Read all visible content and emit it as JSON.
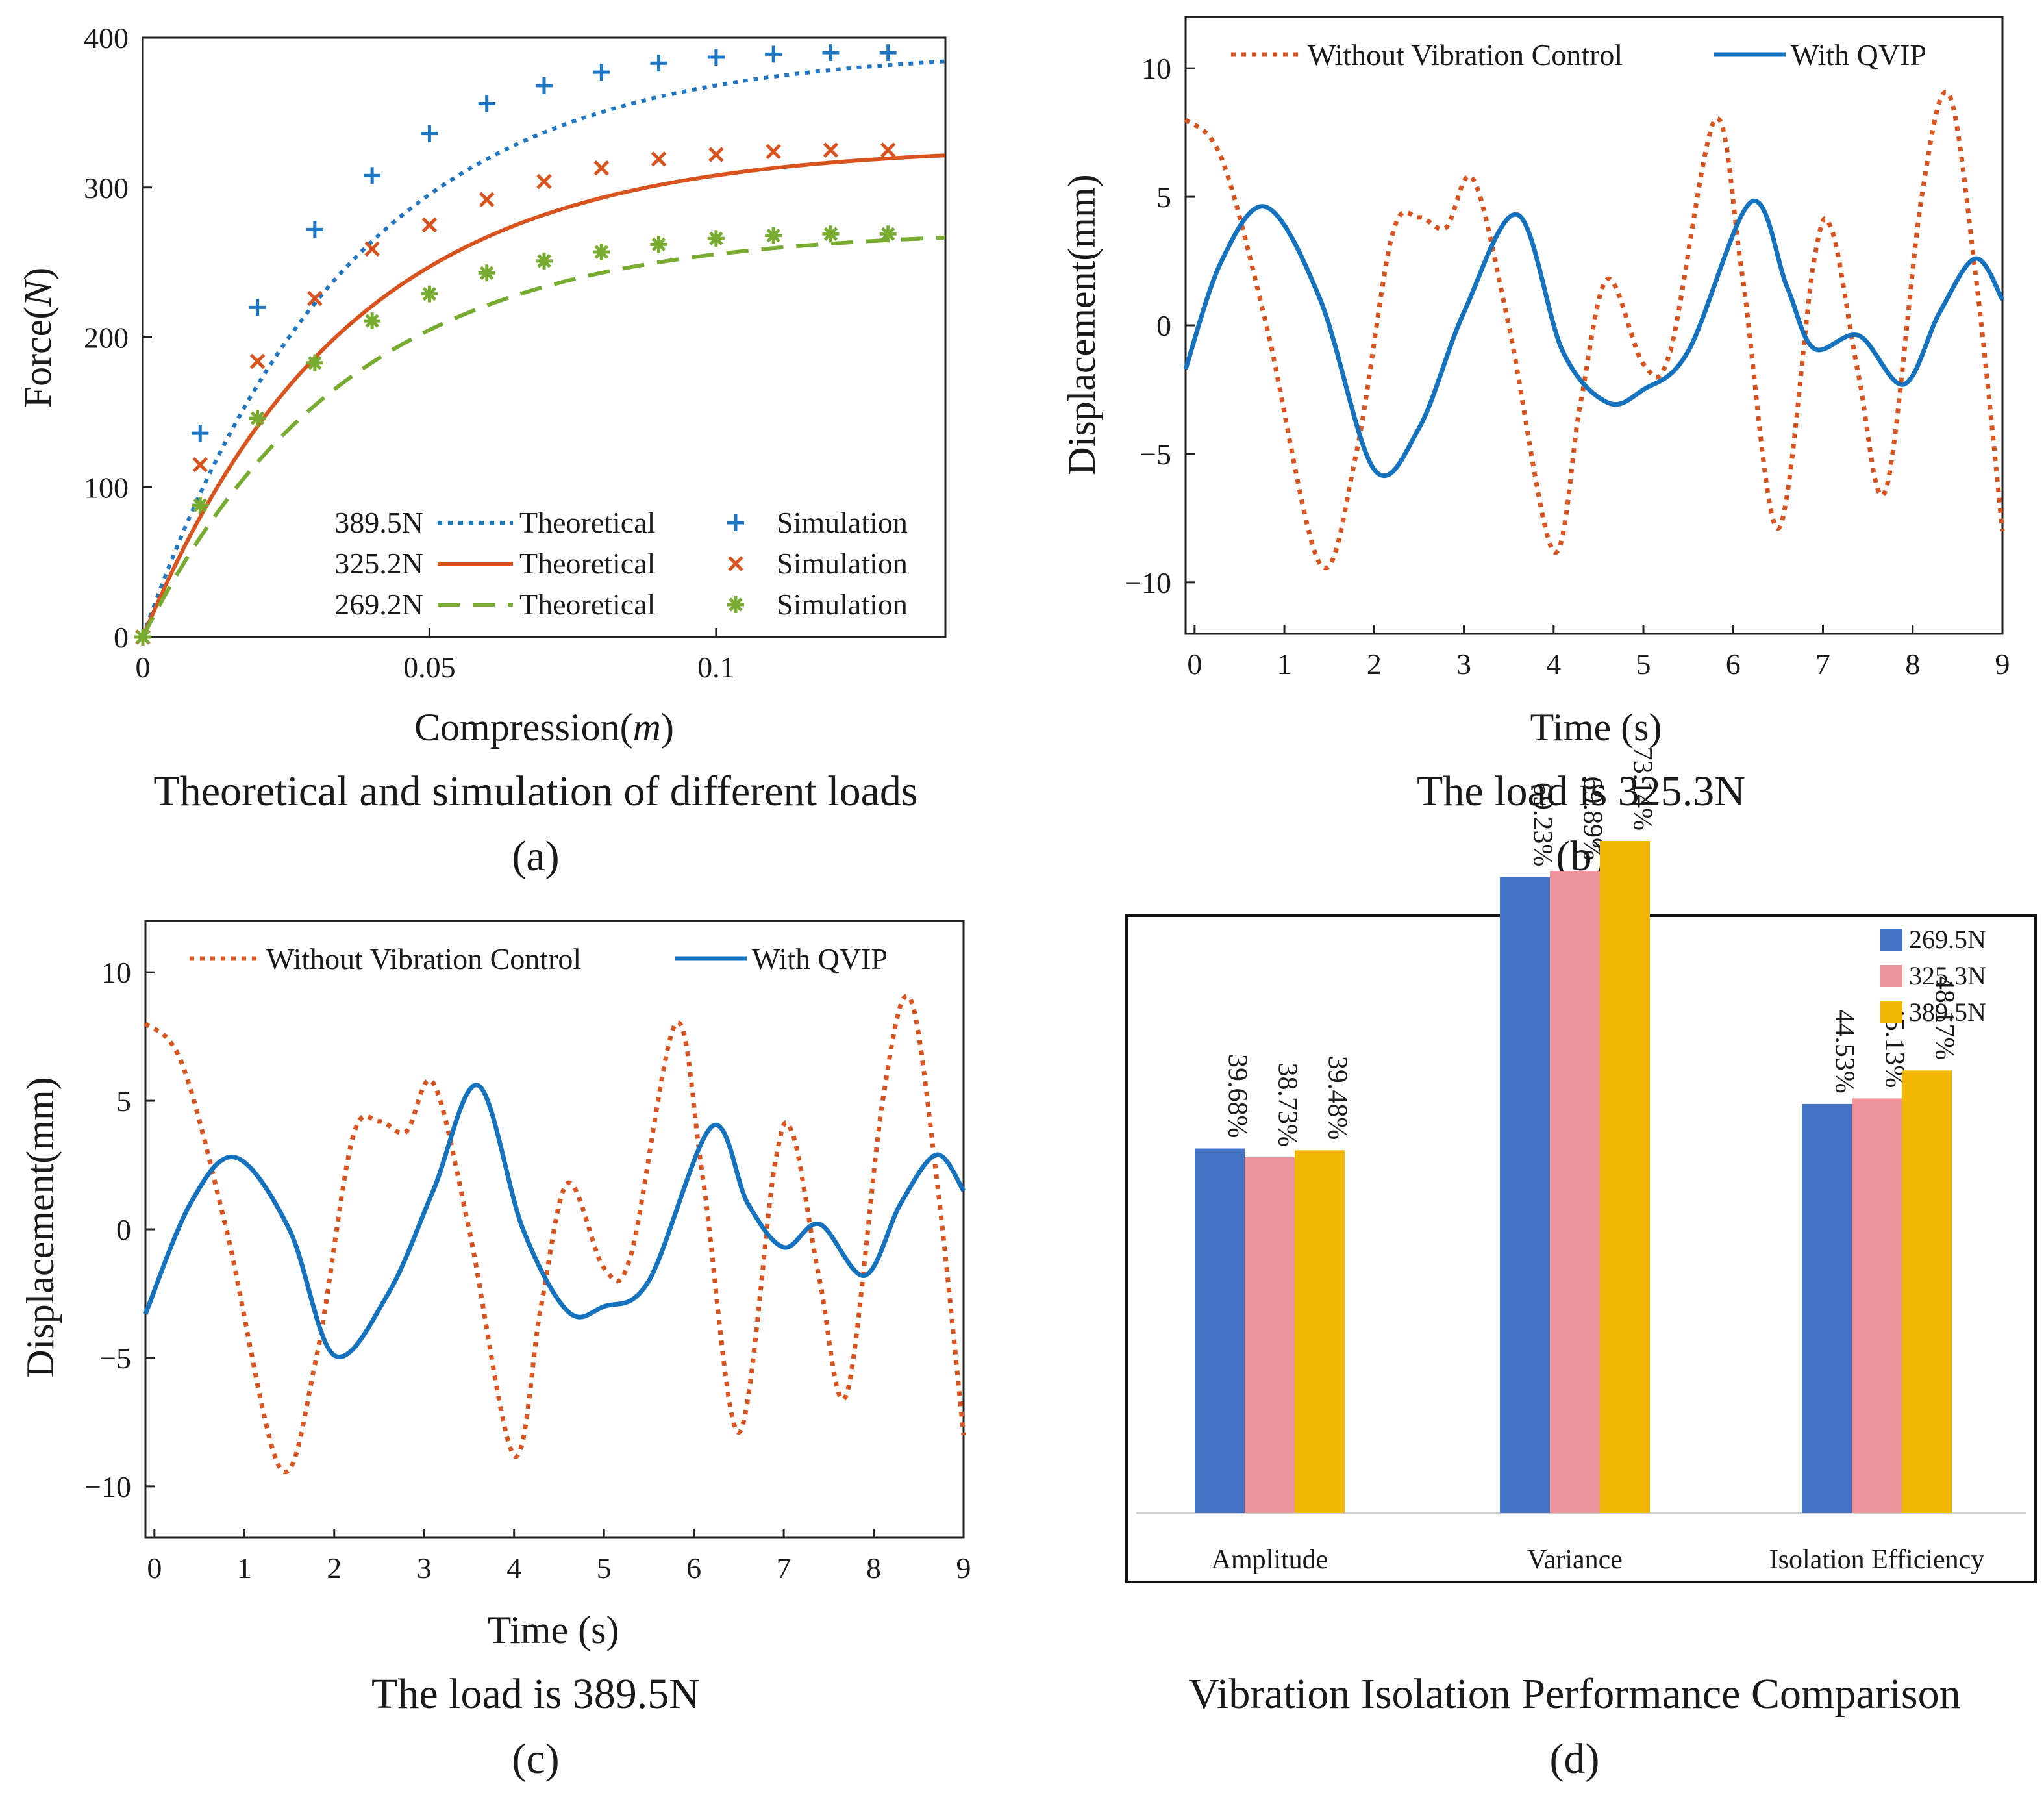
{
  "chart_data": [
    {
      "id": "a",
      "type": "line",
      "xlabel_text": "Compression(",
      "xlabel_var": "m",
      "xlabel_close": ")",
      "ylabel_text": "Force(",
      "ylabel_var": "N",
      "ylabel_close": ")",
      "xlim": [
        0,
        0.14
      ],
      "ylim": [
        0,
        400
      ],
      "xticks": [
        0,
        0.05,
        0.1
      ],
      "xtick_labels": [
        "0",
        "0.05",
        "0.1"
      ],
      "yticks": [
        0,
        100,
        200,
        300,
        400
      ],
      "ytick_labels": [
        "0",
        "100",
        "200",
        "300",
        "400"
      ],
      "caption": "Theoretical and simulation of different loads",
      "panel": "(a)",
      "series": [
        {
          "name": "389.5N",
          "line_label": "Theoretical",
          "marker_label": "Simulation",
          "color": "#1f77c4",
          "style": "dotted",
          "marker": "plus",
          "asymptote": 392,
          "k": 28,
          "sim_x": [
            0,
            0.01,
            0.02,
            0.03,
            0.04,
            0.05,
            0.06,
            0.07,
            0.08,
            0.09,
            0.1,
            0.11,
            0.12,
            0.13
          ],
          "sim_y": [
            0,
            136,
            220,
            272,
            308,
            336,
            356,
            368,
            377,
            383,
            387,
            389,
            390,
            390
          ]
        },
        {
          "name": "325.2N",
          "line_label": "Theoretical",
          "marker_label": "Simulation",
          "color": "#d9531e",
          "style": "solid",
          "marker": "x",
          "asymptote": 328,
          "k": 28,
          "sim_x": [
            0,
            0.01,
            0.02,
            0.03,
            0.04,
            0.05,
            0.06,
            0.07,
            0.08,
            0.09,
            0.1,
            0.11,
            0.12,
            0.13
          ],
          "sim_y": [
            0,
            115,
            184,
            226,
            259,
            275,
            292,
            304,
            313,
            319,
            322,
            324,
            325,
            325
          ]
        },
        {
          "name": "269.2N",
          "line_label": "Theoretical",
          "marker_label": "Simulation",
          "color": "#77ac30",
          "style": "dashed",
          "marker": "star",
          "asymptote": 272,
          "k": 28,
          "sim_x": [
            0,
            0.01,
            0.02,
            0.03,
            0.04,
            0.05,
            0.06,
            0.07,
            0.08,
            0.09,
            0.1,
            0.11,
            0.12,
            0.13
          ],
          "sim_y": [
            0,
            88,
            146,
            183,
            211,
            229,
            243,
            251,
            257,
            262,
            266,
            268,
            269,
            269
          ]
        }
      ]
    },
    {
      "id": "b",
      "type": "line",
      "xlabel": "Time (s)",
      "ylabel": "Displacement(mm)",
      "xlim": [
        -0.1,
        9
      ],
      "ylim": [
        -12,
        12
      ],
      "xticks": [
        0,
        1,
        2,
        3,
        4,
        5,
        6,
        7,
        8,
        9
      ],
      "xtick_labels": [
        "0",
        "1",
        "2",
        "3",
        "4",
        "5",
        "6",
        "7",
        "8",
        "9"
      ],
      "yticks": [
        -10,
        -5,
        0,
        5,
        10
      ],
      "ytick_labels": [
        "−10",
        "−5",
        "0",
        "5",
        "10"
      ],
      "caption": "The load is 325.3N",
      "panel": "(b)",
      "series": [
        {
          "name": "Without Vibration Control",
          "color": "#d9531e",
          "style": "dotted",
          "x": [
            -0.1,
            0.3,
            0.8,
            1.4,
            1.8,
            2.2,
            2.5,
            2.8,
            3.1,
            3.5,
            4.0,
            4.3,
            4.6,
            5.0,
            5.3,
            5.8,
            6.1,
            6.5,
            6.9,
            7.1,
            7.4,
            7.7,
            8.1,
            8.4,
            8.7,
            9.0
          ],
          "y": [
            8,
            6.5,
            0,
            -9.3,
            -5,
            3.5,
            4.2,
            3.8,
            5.7,
            0,
            -8.8,
            -3,
            1.8,
            -1.5,
            -1,
            8,
            2,
            -7.9,
            2.5,
            3.7,
            -2,
            -6.4,
            5,
            9,
            2,
            -8
          ]
        },
        {
          "name": "With QVIP",
          "color": "#1472bf",
          "style": "solid",
          "x": [
            -0.1,
            0.3,
            0.8,
            1.4,
            2.0,
            2.5,
            3.0,
            3.6,
            4.1,
            4.6,
            5.0,
            5.5,
            6.2,
            6.6,
            6.9,
            7.4,
            7.9,
            8.3,
            8.7,
            9.0
          ],
          "y": [
            -1.7,
            2.5,
            4.6,
            1,
            -5.6,
            -4,
            0.5,
            4.3,
            -1,
            -3,
            -2.5,
            -1,
            4.8,
            1.5,
            -0.9,
            -0.4,
            -2.3,
            0.5,
            2.6,
            1
          ]
        }
      ]
    },
    {
      "id": "c",
      "type": "line",
      "xlabel": "Time (s)",
      "ylabel": "Displacement(mm)",
      "xlim": [
        -0.1,
        9
      ],
      "ylim": [
        -12,
        12
      ],
      "xticks": [
        0,
        1,
        2,
        3,
        4,
        5,
        6,
        7,
        8,
        9
      ],
      "xtick_labels": [
        "0",
        "1",
        "2",
        "3",
        "4",
        "5",
        "6",
        "7",
        "8",
        "9"
      ],
      "yticks": [
        -10,
        -5,
        0,
        5,
        10
      ],
      "ytick_labels": [
        "−10",
        "−5",
        "0",
        "5",
        "10"
      ],
      "caption": "The load is 389.5N",
      "panel": "(c)",
      "series": [
        {
          "name": "Without Vibration Control",
          "color": "#d9531e",
          "style": "dotted",
          "x": [
            -0.1,
            0.3,
            0.8,
            1.4,
            1.8,
            2.2,
            2.5,
            2.8,
            3.1,
            3.5,
            4.0,
            4.3,
            4.6,
            5.0,
            5.3,
            5.8,
            6.1,
            6.5,
            6.9,
            7.1,
            7.4,
            7.7,
            8.1,
            8.4,
            8.7,
            9.0
          ],
          "y": [
            8,
            6.5,
            0,
            -9.3,
            -5,
            3.5,
            4.2,
            3.8,
            5.7,
            0,
            -8.8,
            -3,
            1.8,
            -1.5,
            -1,
            8,
            2,
            -7.9,
            2.5,
            3.7,
            -2,
            -6.4,
            5,
            9,
            2,
            -8
          ]
        },
        {
          "name": "With QVIP",
          "color": "#1472bf",
          "style": "solid",
          "x": [
            -0.1,
            0.4,
            0.9,
            1.5,
            2.0,
            2.6,
            3.1,
            3.6,
            4.1,
            4.6,
            5.0,
            5.5,
            6.2,
            6.6,
            7.0,
            7.4,
            7.9,
            8.3,
            8.7,
            9.0
          ],
          "y": [
            -3.3,
            1,
            2.8,
            0,
            -4.9,
            -2.5,
            1.5,
            5.6,
            0,
            -3.2,
            -3,
            -2,
            4,
            1,
            -0.7,
            0.2,
            -1.8,
            1,
            2.9,
            1.5
          ]
        }
      ]
    },
    {
      "id": "d",
      "type": "bar",
      "categories": [
        "Amplitude",
        "Variance",
        "Isolation Efficiency"
      ],
      "ylim": [
        0,
        80
      ],
      "caption": "Vibration Isolation Performance Comparison",
      "panel": "(d)",
      "series": [
        {
          "name": "269.5N",
          "color": "#4472c4",
          "values": [
            39.68,
            69.23,
            44.53
          ],
          "labels": [
            "39.68%",
            "69.23%",
            "44.53%"
          ]
        },
        {
          "name": "325.3N",
          "color": "#ed939a",
          "values": [
            38.73,
            69.89,
            45.13
          ],
          "labels": [
            "38.73%",
            "69.89%",
            "45.13%"
          ]
        },
        {
          "name": "389.5N",
          "color": "#f2b705",
          "values": [
            39.48,
            73.14,
            48.17
          ],
          "labels": [
            "39.48%",
            "73.14%",
            "48.17%"
          ]
        }
      ]
    }
  ]
}
